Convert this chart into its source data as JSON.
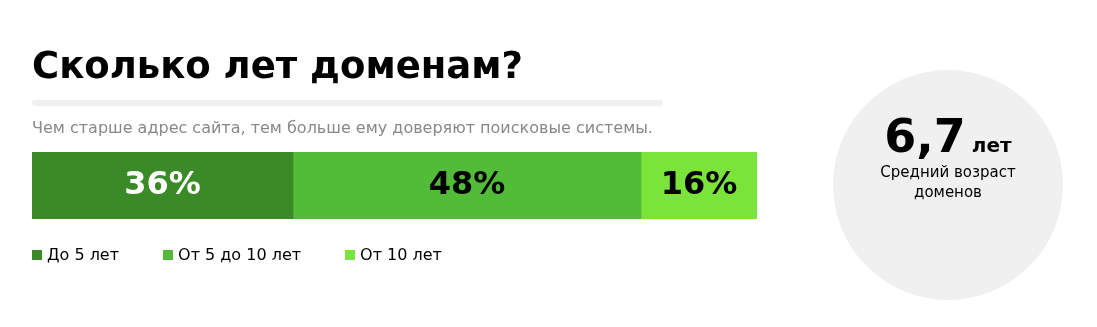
{
  "chart_data": [
    {
      "type": "bar",
      "title": "Сколько лет доменам?",
      "subtitle": "Чем старше адрес сайта, тем больше ему доверяют поисковые системы.",
      "orientation": "horizontal",
      "stacked": true,
      "categories": [
        null
      ],
      "tick_labels": false,
      "legend": "bottom",
      "series": [
        {
          "name": "До 5 лет",
          "color": "#3a8a28",
          "values": [
            36
          ],
          "value_labels": [
            "36%"
          ]
        },
        {
          "name": "От 5 до 10 лет",
          "color": "#52bb37",
          "values": [
            48
          ],
          "value_labels": [
            "48%"
          ]
        },
        {
          "name": "От 10 лет",
          "color": "#7ae43a",
          "values": [
            16
          ],
          "value_labels": [
            "16%"
          ]
        }
      ]
    },
    {
      "type": "other",
      "annotations": [
        "6,7",
        "лет",
        "Средний возраст доменов"
      ]
    }
  ]
}
